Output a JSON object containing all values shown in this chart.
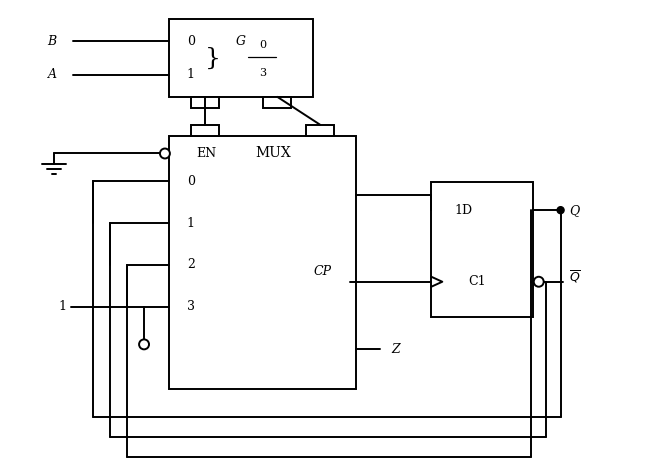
{
  "bg_color": "#ffffff",
  "line_color": "#000000",
  "fig_width": 6.45,
  "fig_height": 4.76,
  "G_inputs": [
    "0",
    "1"
  ],
  "G_fraction_top": "0",
  "G_fraction_bot": "3",
  "B_label": "B",
  "A_label": "A",
  "MUX_label": "MUX",
  "EN_label": "EN",
  "MUX_inputs": [
    "0",
    "1",
    "2",
    "3"
  ],
  "DFF_D_label": "1D",
  "DFF_C_label": "C1",
  "DFF_Q_label": "Q",
  "DFF_Qbar_label": "Q",
  "CP_label": "CP",
  "Z_label": "Z",
  "one_label": "1"
}
